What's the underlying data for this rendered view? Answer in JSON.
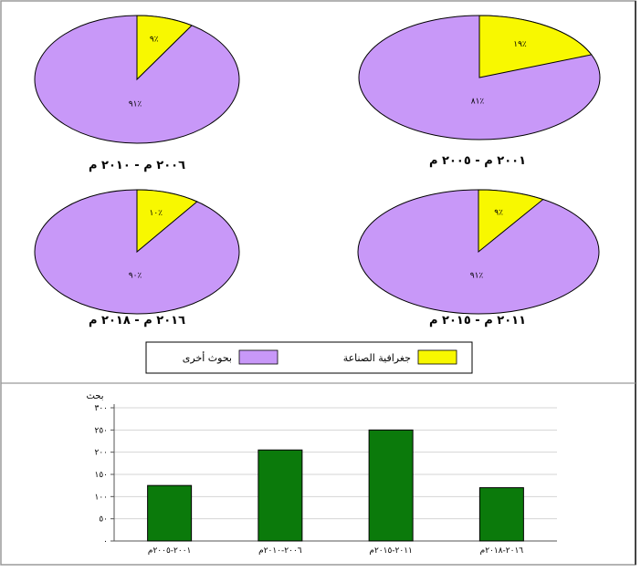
{
  "colors": {
    "other": "#c898f8",
    "industry": "#f8f800",
    "bar": "#0b7a0b",
    "outline": "#000000"
  },
  "legend": {
    "industry_label": "جغرافية الصناعة",
    "other_label": "بحوث أخرى"
  },
  "chart_data": [
    {
      "type": "pie",
      "title": "٢٠٠٦ م - ٢٠١٠ م",
      "labels": [
        "جغرافية الصناعة",
        "بحوث أخرى"
      ],
      "values": [
        9,
        91
      ],
      "value_labels": [
        "٩٪",
        "٩١٪"
      ]
    },
    {
      "type": "pie",
      "title": "٢٠٠١ م - ٢٠٠٥ م",
      "labels": [
        "جغرافية الصناعة",
        "بحوث أخرى"
      ],
      "values": [
        19,
        81
      ],
      "value_labels": [
        "١٩٪",
        "٨١٪"
      ]
    },
    {
      "type": "pie",
      "title": "٢٠١٦ م - ٢٠١٨ م",
      "labels": [
        "جغرافية الصناعة",
        "بحوث أخرى"
      ],
      "values": [
        10,
        90
      ],
      "value_labels": [
        "١٠٪",
        "٩٠٪"
      ]
    },
    {
      "type": "pie",
      "title": "٢٠١١ م - ٢٠١٥ م",
      "labels": [
        "جغرافية الصناعة",
        "بحوث أخرى"
      ],
      "values": [
        9,
        91
      ],
      "value_labels": [
        "٩٪",
        "٩١٪"
      ]
    },
    {
      "type": "bar",
      "ylabel": "بحث",
      "ylim": [
        0,
        300
      ],
      "yticks": [
        0,
        50,
        100,
        150,
        200,
        250,
        300
      ],
      "ytick_labels": [
        "٠",
        "٥٠",
        "١٠٠",
        "١٥٠",
        "٢٠٠",
        "٢٥٠",
        "٣٠٠"
      ],
      "categories": [
        "٢٠٠١-٢٠٠٥م",
        "٢٠٠٦-٢٠١٠م",
        "٢٠١١-٢٠١٥م",
        "٢٠١٦-٢٠١٨م"
      ],
      "values": [
        125,
        205,
        250,
        120
      ],
      "grid": true
    }
  ]
}
